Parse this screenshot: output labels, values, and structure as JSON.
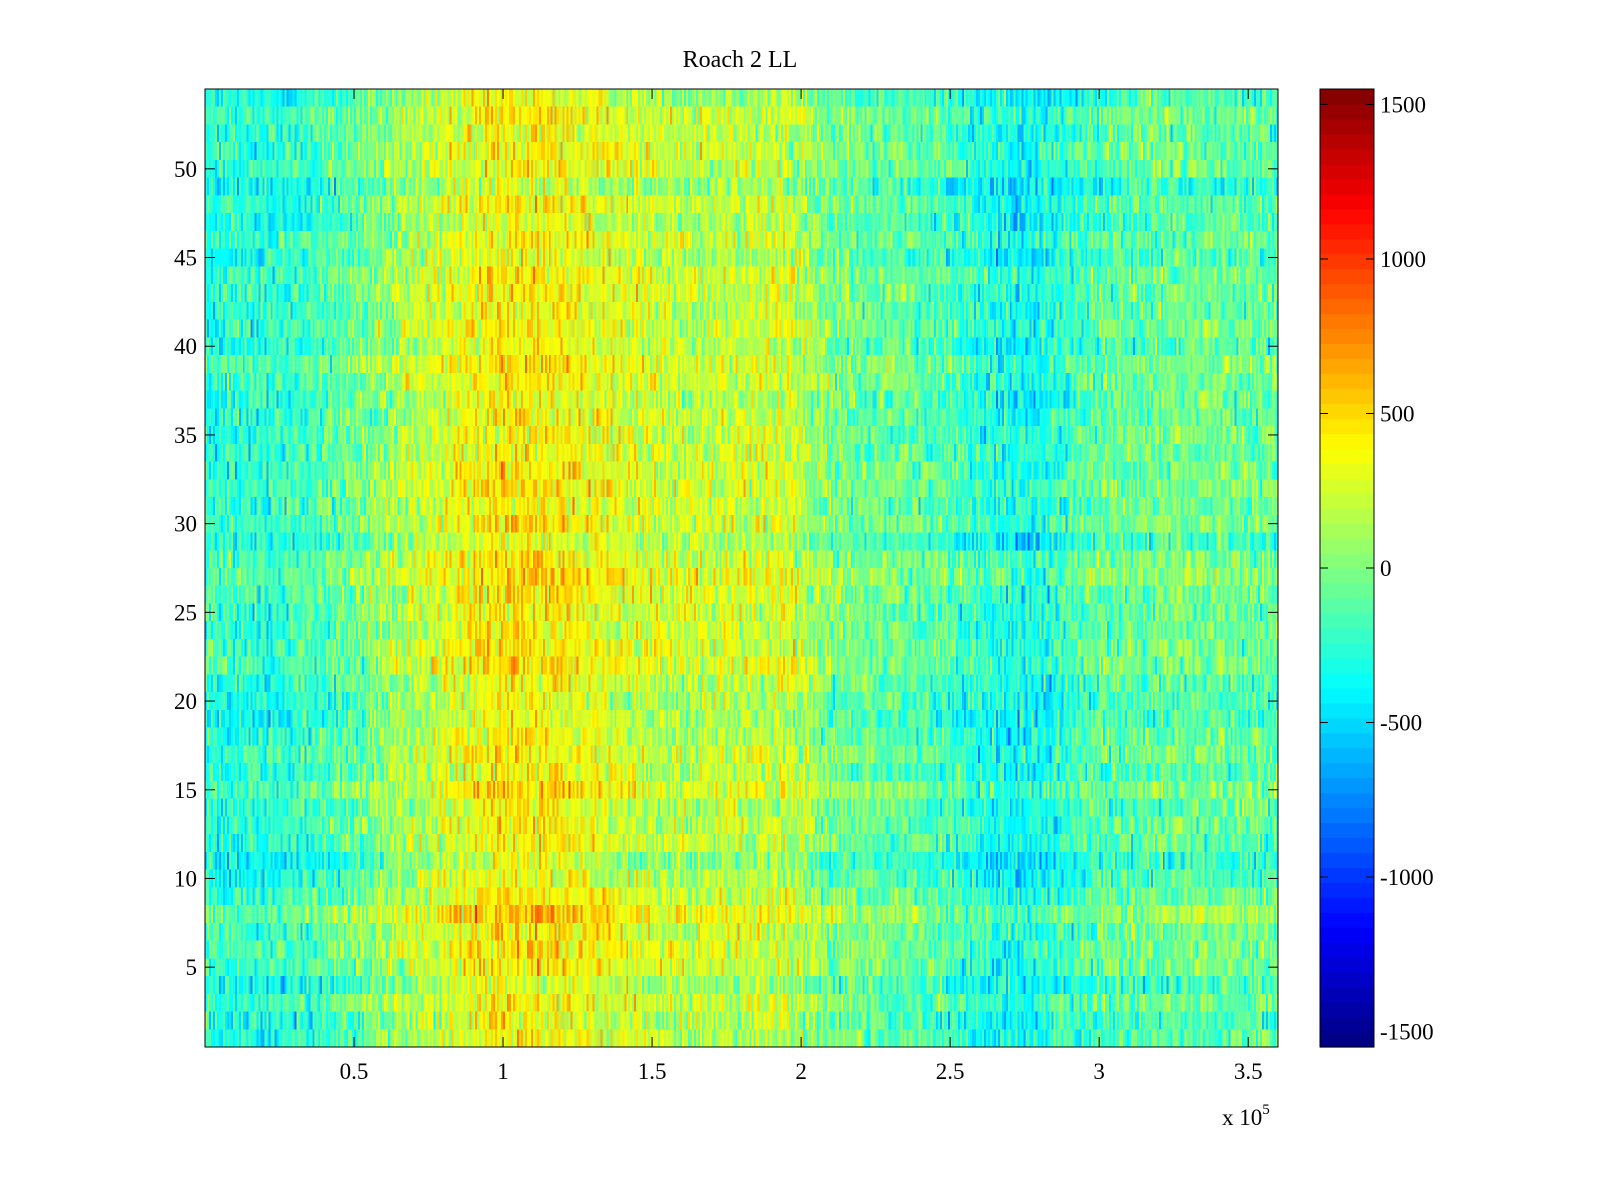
{
  "chart_data": {
    "type": "heatmap",
    "title": "Roach 2 LL",
    "xlabel": "",
    "ylabel": "",
    "x_multiplier_label": "x 10",
    "x_multiplier_exponent": "5",
    "xlim": [
      0,
      360000
    ],
    "ylim": [
      0.5,
      54.5
    ],
    "rows": 54,
    "x_ticks": [
      {
        "value": 0.5,
        "label": "0.5"
      },
      {
        "value": 1,
        "label": "1"
      },
      {
        "value": 1.5,
        "label": "1.5"
      },
      {
        "value": 2,
        "label": "2"
      },
      {
        "value": 2.5,
        "label": "2.5"
      },
      {
        "value": 3,
        "label": "3"
      },
      {
        "value": 3.5,
        "label": "3.5"
      }
    ],
    "y_ticks": [
      {
        "value": 5,
        "label": "5"
      },
      {
        "value": 10,
        "label": "10"
      },
      {
        "value": 15,
        "label": "15"
      },
      {
        "value": 20,
        "label": "20"
      },
      {
        "value": 25,
        "label": "25"
      },
      {
        "value": 30,
        "label": "30"
      },
      {
        "value": 35,
        "label": "35"
      },
      {
        "value": 40,
        "label": "40"
      },
      {
        "value": 45,
        "label": "45"
      },
      {
        "value": 50,
        "label": "50"
      }
    ],
    "colorbar": {
      "colormap": "jet",
      "clim": [
        -1550,
        1550
      ],
      "ticks": [
        {
          "value": 1500,
          "label": "1500"
        },
        {
          "value": 1000,
          "label": "1000"
        },
        {
          "value": 500,
          "label": "500"
        },
        {
          "value": 0,
          "label": "0"
        },
        {
          "value": -500,
          "label": "-500"
        },
        {
          "value": -1000,
          "label": "-1000"
        },
        {
          "value": -1500,
          "label": "-1500"
        }
      ]
    },
    "column_mean_profile": [
      {
        "x": 0,
        "value": -250
      },
      {
        "x": 20000,
        "value": -280
      },
      {
        "x": 40000,
        "value": -180
      },
      {
        "x": 60000,
        "value": 40
      },
      {
        "x": 80000,
        "value": 250
      },
      {
        "x": 100000,
        "value": 430
      },
      {
        "x": 120000,
        "value": 380
      },
      {
        "x": 140000,
        "value": 260
      },
      {
        "x": 160000,
        "value": 180
      },
      {
        "x": 180000,
        "value": 200
      },
      {
        "x": 195000,
        "value": 230
      },
      {
        "x": 210000,
        "value": -40
      },
      {
        "x": 240000,
        "value": -120
      },
      {
        "x": 260000,
        "value": -260
      },
      {
        "x": 275000,
        "value": -380
      },
      {
        "x": 300000,
        "value": -120
      },
      {
        "x": 330000,
        "value": -60
      },
      {
        "x": 360000,
        "value": -100
      }
    ],
    "grid": false,
    "colorbar_position": "right"
  }
}
